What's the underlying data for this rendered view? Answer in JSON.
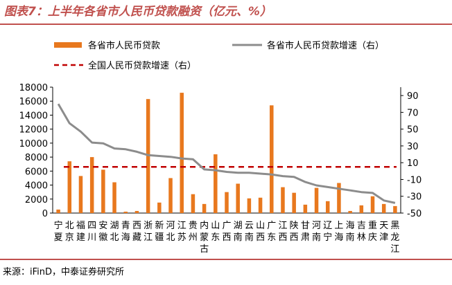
{
  "header": {
    "title": "图表7：上半年各省市人民币贷款融资（亿元、%）"
  },
  "footer": {
    "source": "来源：iFinD，中泰证券研究所"
  },
  "colors": {
    "accent": "#c0504d",
    "bar": "#e8781e",
    "line": "#8c8c8c",
    "dash": "#c00000"
  },
  "chart_data": {
    "type": "bar",
    "categories": [
      "宁夏",
      "北京",
      "福建",
      "四川",
      "安徽",
      "湖北",
      "青海",
      "西藏",
      "浙江",
      "新疆",
      "河北",
      "江苏",
      "贵州",
      "内蒙古",
      "山东",
      "广西",
      "湖南",
      "云南",
      "山西",
      "广东",
      "江西",
      "陕西",
      "甘肃",
      "河南",
      "辽宁",
      "上海",
      "海南",
      "吉林",
      "重庆",
      "天津",
      "黑龙江"
    ],
    "series": [
      {
        "name": "各省市人民币贷款",
        "type": "bar",
        "axis": "left",
        "values": [
          500,
          7400,
          5300,
          8000,
          6200,
          4400,
          200,
          300,
          16300,
          1500,
          5000,
          17200,
          2700,
          1300,
          8400,
          3000,
          4200,
          2100,
          2200,
          15400,
          3700,
          2900,
          1200,
          3600,
          1700,
          4300,
          300,
          1100,
          2400,
          1300,
          1000
        ]
      },
      {
        "name": "各省市人民币贷款增速（右）",
        "type": "line",
        "axis": "right",
        "values": [
          80,
          57,
          47,
          34,
          33,
          27,
          26,
          23,
          19,
          18,
          17,
          15,
          14,
          2,
          1,
          -1,
          -2,
          -2,
          -3,
          -4,
          -6,
          -7,
          -13,
          -17,
          -19,
          -21,
          -23,
          -25,
          -26,
          -35,
          -38
        ]
      },
      {
        "name": "全国人民币贷款增速（右）",
        "type": "hline",
        "axis": "right",
        "value": 5
      }
    ],
    "y_left": {
      "min": 0,
      "max": 18000,
      "ticks": [
        0,
        2000,
        4000,
        6000,
        8000,
        10000,
        12000,
        14000,
        16000,
        18000
      ]
    },
    "y_right": {
      "min": -50,
      "max": 100,
      "ticks": [
        -50,
        -30,
        -10,
        10,
        30,
        50,
        70,
        90
      ]
    },
    "legend_position": "top"
  }
}
